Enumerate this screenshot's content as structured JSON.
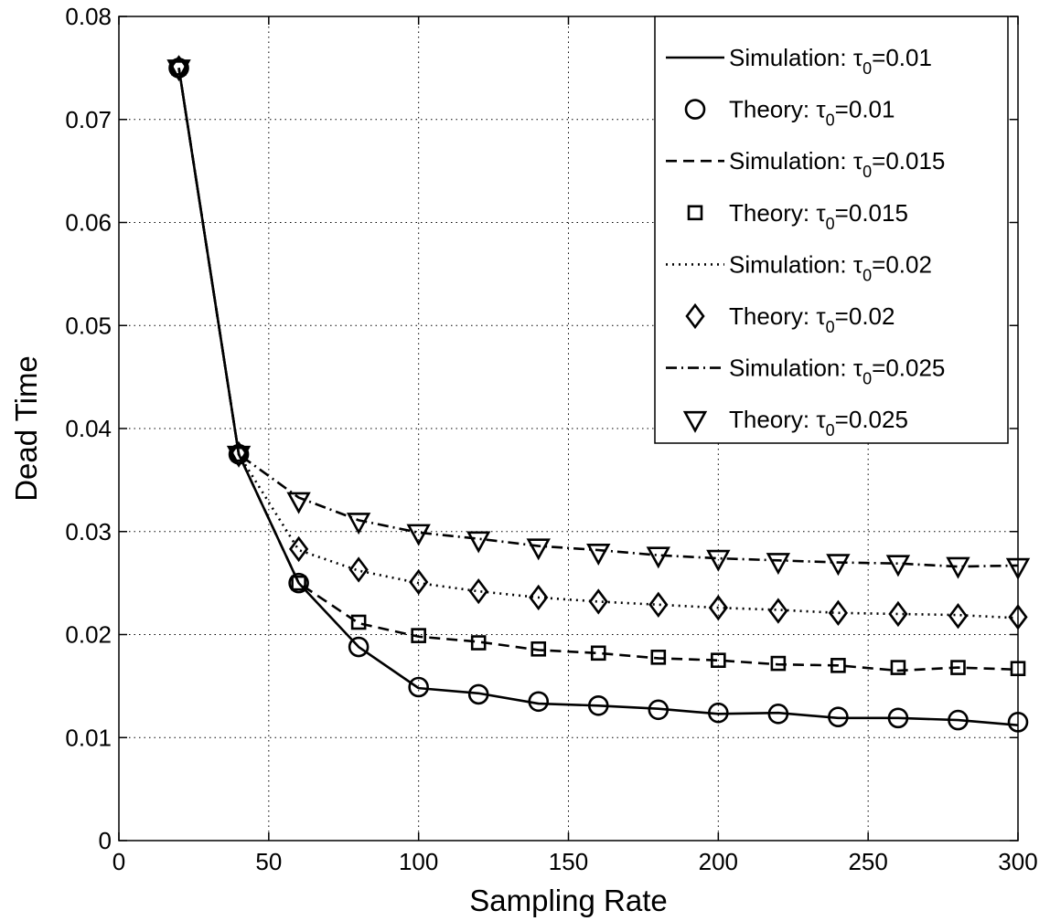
{
  "chart_data": {
    "type": "line",
    "xlabel": "Sampling Rate",
    "ylabel": "Dead Time",
    "xlim": [
      0,
      300
    ],
    "ylim": [
      0,
      0.08
    ],
    "x_ticks": [
      "0",
      "50",
      "100",
      "150",
      "200",
      "250",
      "300"
    ],
    "y_ticks": [
      "0",
      "0.01",
      "0.02",
      "0.03",
      "0.04",
      "0.05",
      "0.06",
      "0.07",
      "0.08"
    ],
    "grid": true,
    "legend_position": "top-right",
    "legend": [
      {
        "prefix": "Simulation: ",
        "symbol": "τ",
        "sub": "0",
        "suffix": "=0.01",
        "kind": "line",
        "dash": "solid"
      },
      {
        "prefix": "Theory: ",
        "symbol": "τ",
        "sub": "0",
        "suffix": "=0.01",
        "kind": "marker",
        "marker": "circle"
      },
      {
        "prefix": "Simulation: ",
        "symbol": "τ",
        "sub": "0",
        "suffix": "=0.015",
        "kind": "line",
        "dash": "dashed"
      },
      {
        "prefix": "Theory: ",
        "symbol": "τ",
        "sub": "0",
        "suffix": "=0.015",
        "kind": "marker",
        "marker": "square"
      },
      {
        "prefix": "Simulation: ",
        "symbol": "τ",
        "sub": "0",
        "suffix": "=0.02",
        "kind": "line",
        "dash": "dotted"
      },
      {
        "prefix": "Theory: ",
        "symbol": "τ",
        "sub": "0",
        "suffix": "=0.02",
        "kind": "marker",
        "marker": "diamond"
      },
      {
        "prefix": "Simulation: ",
        "symbol": "τ",
        "sub": "0",
        "suffix": "=0.025",
        "kind": "line",
        "dash": "dashdot"
      },
      {
        "prefix": "Theory: ",
        "symbol": "τ",
        "sub": "0",
        "suffix": "=0.025",
        "kind": "marker",
        "marker": "triangle"
      }
    ],
    "x": [
      20,
      40,
      60,
      80,
      100,
      120,
      140,
      160,
      180,
      200,
      220,
      240,
      260,
      280,
      300
    ],
    "series": [
      {
        "name": "Simulation: τ0=0.01",
        "style": "line",
        "dash": "solid",
        "values": [
          0.075,
          0.0375,
          0.025,
          0.0188,
          0.0148,
          0.0143,
          0.0133,
          0.0131,
          0.0128,
          0.0123,
          0.0124,
          0.0119,
          0.0119,
          0.0117,
          0.0112
        ]
      },
      {
        "name": "Theory: τ0=0.01",
        "style": "marker",
        "marker": "circle",
        "values": [
          0.075,
          0.0375,
          0.025,
          0.0188,
          0.0149,
          0.0142,
          0.0135,
          0.0131,
          0.0127,
          0.0124,
          0.0123,
          0.012,
          0.0119,
          0.0117,
          0.0115
        ]
      },
      {
        "name": "Simulation: τ0=0.015",
        "style": "line",
        "dash": "dashed",
        "values": [
          0.075,
          0.0375,
          0.025,
          0.0211,
          0.0198,
          0.0193,
          0.0185,
          0.0182,
          0.0177,
          0.0175,
          0.0171,
          0.017,
          0.0165,
          0.0168,
          0.0166
        ]
      },
      {
        "name": "Theory: τ0=0.015",
        "style": "marker",
        "marker": "square",
        "values": [
          0.075,
          0.0375,
          0.025,
          0.0212,
          0.0199,
          0.0192,
          0.0186,
          0.0182,
          0.0178,
          0.0175,
          0.0172,
          0.017,
          0.0168,
          0.0168,
          0.0167
        ]
      },
      {
        "name": "Simulation: τ0=0.02",
        "style": "line",
        "dash": "dotted",
        "values": [
          0.075,
          0.0375,
          0.0282,
          0.0262,
          0.025,
          0.0242,
          0.0236,
          0.0232,
          0.0229,
          0.0226,
          0.0224,
          0.0221,
          0.022,
          0.0219,
          0.0216
        ]
      },
      {
        "name": "Theory: τ0=0.02",
        "style": "marker",
        "marker": "diamond",
        "values": [
          0.075,
          0.0375,
          0.0283,
          0.0263,
          0.0251,
          0.0242,
          0.0236,
          0.0232,
          0.0229,
          0.0226,
          0.0223,
          0.0221,
          0.022,
          0.0218,
          0.0217
        ]
      },
      {
        "name": "Simulation: τ0=0.025",
        "style": "line",
        "dash": "dashdot",
        "values": [
          0.075,
          0.0375,
          0.0333,
          0.0311,
          0.0299,
          0.0293,
          0.0286,
          0.0282,
          0.0277,
          0.0274,
          0.0272,
          0.027,
          0.0269,
          0.0266,
          0.0267
        ]
      },
      {
        "name": "Theory: τ0=0.025",
        "style": "marker",
        "marker": "triangle",
        "values": [
          0.075,
          0.0375,
          0.033,
          0.031,
          0.0299,
          0.0292,
          0.0285,
          0.028,
          0.0277,
          0.0274,
          0.0271,
          0.027,
          0.0269,
          0.0267,
          0.0266
        ]
      }
    ]
  }
}
